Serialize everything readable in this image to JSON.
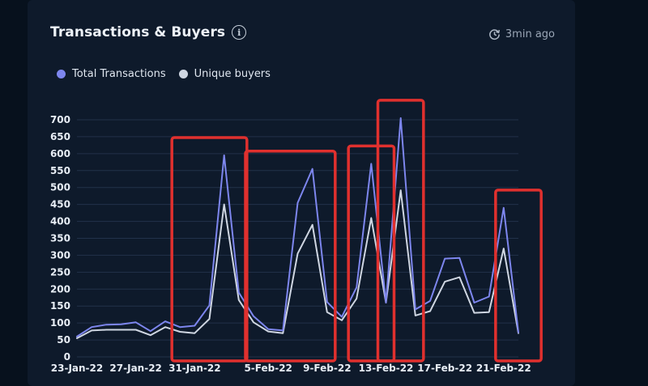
{
  "header": {
    "title": "Transactions & Buyers",
    "updated": "3min ago"
  },
  "colors": {
    "total": "#7d86ee",
    "unique": "#cfd6e2",
    "highlight": "#e0302e",
    "grid": "#22324a"
  },
  "chart_data": {
    "type": "line",
    "title": "Transactions & Buyers",
    "xlabel": "",
    "ylabel": "",
    "ylim": [
      0,
      700
    ],
    "yticks": [
      "0",
      "50",
      "100",
      "150",
      "200",
      "250",
      "300",
      "350",
      "400",
      "450",
      "500",
      "550",
      "600",
      "650",
      "700"
    ],
    "xticks": [
      "23-Jan-22",
      "27-Jan-22",
      "31-Jan-22",
      "5-Feb-22",
      "9-Feb-22",
      "13-Feb-22",
      "17-Feb-22",
      "21-Feb-22"
    ],
    "legend_position": "top-left",
    "grid": true,
    "x": [
      "23-Jan-22",
      "24-Jan-22",
      "25-Jan-22",
      "26-Jan-22",
      "27-Jan-22",
      "28-Jan-22",
      "29-Jan-22",
      "30-Jan-22",
      "31-Jan-22",
      "1-Feb-22",
      "2-Feb-22",
      "3-Feb-22",
      "4-Feb-22",
      "5-Feb-22",
      "6-Feb-22",
      "7-Feb-22",
      "8-Feb-22",
      "9-Feb-22",
      "10-Feb-22",
      "11-Feb-22",
      "12-Feb-22",
      "13-Feb-22",
      "14-Feb-22",
      "15-Feb-22",
      "16-Feb-22",
      "17-Feb-22",
      "18-Feb-22",
      "19-Feb-22",
      "20-Feb-22",
      "21-Feb-22",
      "22-Feb-22"
    ],
    "series": [
      {
        "name": "Total Transactions",
        "color": "#7d86ee",
        "values": [
          60,
          88,
          95,
          96,
          102,
          76,
          105,
          88,
          92,
          152,
          595,
          190,
          120,
          82,
          78,
          455,
          555,
          162,
          118,
          205,
          570,
          160,
          705,
          140,
          165,
          290,
          292,
          160,
          178,
          440,
          72
        ]
      },
      {
        "name": "Unique buyers",
        "color": "#cfd6e2",
        "values": [
          55,
          78,
          80,
          80,
          80,
          64,
          88,
          74,
          70,
          112,
          450,
          168,
          102,
          75,
          70,
          305,
          390,
          132,
          108,
          172,
          410,
          160,
          492,
          122,
          135,
          222,
          235,
          130,
          132,
          320,
          70
        ]
      }
    ],
    "highlight_ranges": [
      {
        "from": "30-Jan-22",
        "to": "3-Feb-22"
      },
      {
        "from": "4-Feb-22",
        "to": "9-Feb-22"
      },
      {
        "from": "11-Feb-22",
        "to": "13-Feb-22"
      },
      {
        "from": "13-Feb-22",
        "to": "15-Feb-22"
      },
      {
        "from": "21-Feb-22",
        "to": "23-Feb-22"
      }
    ]
  }
}
